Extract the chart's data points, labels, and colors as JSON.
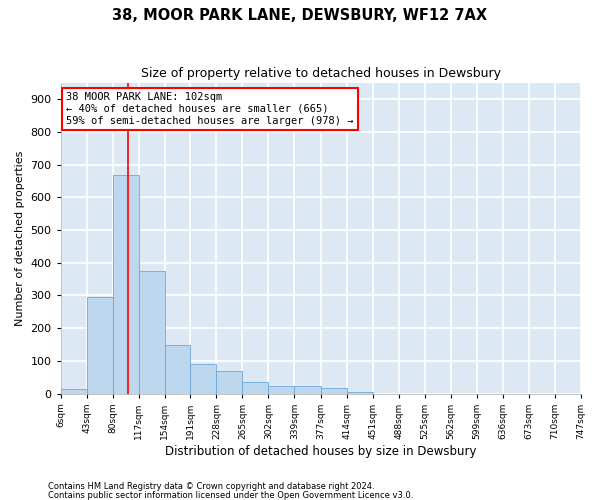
{
  "title": "38, MOOR PARK LANE, DEWSBURY, WF12 7AX",
  "subtitle": "Size of property relative to detached houses in Dewsbury",
  "xlabel": "Distribution of detached houses by size in Dewsbury",
  "ylabel": "Number of detached properties",
  "bar_color": "#bdd7ee",
  "bar_edge_color": "#70a8d8",
  "background_color": "#dce9f5",
  "grid_color": "white",
  "annotation_text": "38 MOOR PARK LANE: 102sqm\n← 40% of detached houses are smaller (665)\n59% of semi-detached houses are larger (978) →",
  "annotation_box_color": "white",
  "annotation_box_edge": "red",
  "property_line_color": "red",
  "property_size": 102,
  "bin_edges": [
    6,
    43,
    80,
    117,
    154,
    191,
    228,
    265,
    302,
    339,
    377,
    414,
    451,
    488,
    525,
    562,
    599,
    636,
    673,
    710,
    747
  ],
  "bar_heights": [
    15,
    295,
    670,
    375,
    150,
    90,
    70,
    35,
    22,
    22,
    18,
    5,
    0,
    0,
    0,
    0,
    0,
    0,
    0,
    0
  ],
  "ylim": [
    0,
    950
  ],
  "yticks": [
    0,
    100,
    200,
    300,
    400,
    500,
    600,
    700,
    800,
    900
  ],
  "footnote1": "Contains HM Land Registry data © Crown copyright and database right 2024.",
  "footnote2": "Contains public sector information licensed under the Open Government Licence v3.0."
}
